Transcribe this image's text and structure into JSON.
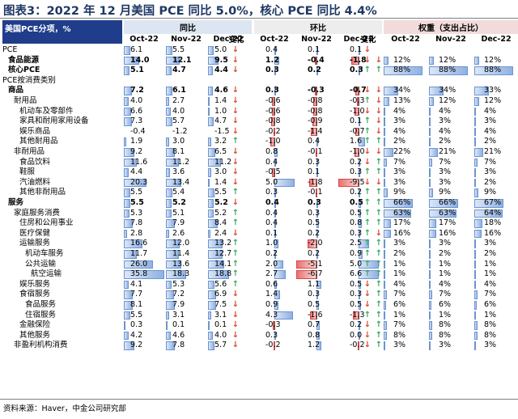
{
  "title": "图表3：2022 年 12 月美国 PCE 同比 5.0%，核心 PCE 同比 4.4%",
  "header": {
    "label_col": "美国PCE分项，%",
    "groups": [
      "同比",
      "环比",
      "权重（支出占比）"
    ],
    "months": [
      "Oct-22",
      "Nov-22",
      "Dec-22"
    ],
    "change": "变化"
  },
  "colors": {
    "header_blue": "#1f3d8a",
    "yoy_bg": "#dce6f2",
    "mom_bg": "#ededed",
    "wt_bg": "#f2dcdb",
    "up": "#37a862",
    "down": "#d9472b"
  },
  "rows": [
    {
      "label": "PCE",
      "indent": 0,
      "bold": false,
      "yoy": [
        6.1,
        5.5,
        5.0
      ],
      "yoy_s": [
        "6.1",
        "5.5",
        "5.0"
      ],
      "yoy_chg": "down",
      "mom": [
        0.4,
        0.1,
        0.1
      ],
      "mom_s": [
        "0.4",
        "0.1",
        "0.1"
      ],
      "mom_chg": "down",
      "wt": [
        "",
        "",
        ""
      ],
      "wtv": [
        0,
        0,
        0
      ],
      "wt_chg": ""
    },
    {
      "label": "食品能源",
      "indent": 1,
      "bold": true,
      "yoy": [
        14.0,
        12.1,
        9.5
      ],
      "yoy_s": [
        "14.0",
        "12.1",
        "9.5"
      ],
      "yoy_chg": "down",
      "mom": [
        1.2,
        -0.4,
        -1.8
      ],
      "mom_s": [
        "1.2",
        "-0.4",
        "-1.8"
      ],
      "mom_chg": "down",
      "wt": [
        "12%",
        "12%",
        "12%"
      ],
      "wtv": [
        12,
        12,
        12
      ],
      "wt_chg": "down"
    },
    {
      "label": "核心PCE",
      "indent": 1,
      "bold": true,
      "yoy": [
        5.1,
        4.7,
        4.4
      ],
      "yoy_s": [
        "5.1",
        "4.7",
        "4.4"
      ],
      "yoy_chg": "down",
      "mom": [
        0.3,
        0.2,
        0.3
      ],
      "mom_s": [
        "0.3",
        "0.2",
        "0.3"
      ],
      "mom_chg": "up",
      "wt": [
        "88%",
        "88%",
        "88%"
      ],
      "wtv": [
        88,
        88,
        88
      ],
      "wt_chg": "up"
    },
    {
      "label": "PCE按消费类别",
      "indent": 0,
      "bold": false,
      "yoy": null,
      "mom": null,
      "wt": null
    },
    {
      "label": "商品",
      "indent": 1,
      "bold": true,
      "yoy": [
        7.2,
        6.1,
        4.6
      ],
      "yoy_s": [
        "7.2",
        "6.1",
        "4.6"
      ],
      "yoy_chg": "down",
      "mom": [
        0.3,
        -0.3,
        -0.7
      ],
      "mom_s": [
        "0.3",
        "-0.3",
        "-0.7"
      ],
      "mom_chg": "down",
      "wt": [
        "34%",
        "34%",
        "33%"
      ],
      "wtv": [
        34,
        34,
        33
      ],
      "wt_chg": "down"
    },
    {
      "label": "耐用品",
      "indent": 2,
      "bold": false,
      "yoy": [
        4.0,
        2.7,
        1.4
      ],
      "yoy_s": [
        "4.0",
        "2.7",
        "1.4"
      ],
      "yoy_chg": "down",
      "mom": [
        -0.6,
        -0.8,
        -0.3
      ],
      "mom_s": [
        "-0.6",
        "-0.8",
        "-0.3"
      ],
      "mom_chg": "up",
      "wt": [
        "13%",
        "12%",
        "12%"
      ],
      "wtv": [
        13,
        12,
        12
      ],
      "wt_chg": "down"
    },
    {
      "label": "机动车及零部件",
      "indent": 3,
      "bold": false,
      "yoy": [
        6.6,
        4.0,
        1.0
      ],
      "yoy_s": [
        "6.6",
        "4.0",
        "1.0"
      ],
      "yoy_chg": "down",
      "mom": [
        -0.6,
        -0.8,
        -1.0
      ],
      "mom_s": [
        "-0.6",
        "-0.8",
        "-1.0"
      ],
      "mom_chg": "down",
      "wt": [
        "4%",
        "4%",
        "4%"
      ],
      "wtv": [
        4,
        4,
        4
      ],
      "wt_chg": "down"
    },
    {
      "label": "家具和耐用家用设备",
      "indent": 3,
      "bold": false,
      "yoy": [
        7.3,
        5.7,
        4.7
      ],
      "yoy_s": [
        "7.3",
        "5.7",
        "4.7"
      ],
      "yoy_chg": "down",
      "mom": [
        -0.8,
        -0.9,
        0.1
      ],
      "mom_s": [
        "-0.8",
        "-0.9",
        "0.1"
      ],
      "mom_chg": "up",
      "wt": [
        "3%",
        "3%",
        "3%"
      ],
      "wtv": [
        3,
        3,
        3
      ],
      "wt_chg": "down"
    },
    {
      "label": "娱乐商品",
      "indent": 3,
      "bold": false,
      "yoy": [
        -0.4,
        -1.2,
        -1.5
      ],
      "yoy_s": [
        "-0.4",
        "-1.2",
        "-1.5"
      ],
      "yoy_chg": "down",
      "mom": [
        -0.2,
        -1.4,
        -0.7
      ],
      "mom_s": [
        "-0.2",
        "-1.4",
        "-0.7"
      ],
      "mom_chg": "up",
      "wt": [
        "4%",
        "4%",
        "4%"
      ],
      "wtv": [
        4,
        4,
        4
      ],
      "wt_chg": "down"
    },
    {
      "label": "其他耐用品",
      "indent": 3,
      "bold": false,
      "yoy": [
        1.9,
        3.0,
        3.2
      ],
      "yoy_s": [
        "1.9",
        "3.0",
        "3.2"
      ],
      "yoy_chg": "up",
      "mom": [
        -1.0,
        0.4,
        1.6
      ],
      "mom_s": [
        "-1.0",
        "0.4",
        "1.6"
      ],
      "mom_chg": "up",
      "wt": [
        "2%",
        "2%",
        "2%"
      ],
      "wtv": [
        2,
        2,
        2
      ],
      "wt_chg": "up"
    },
    {
      "label": "非耐用品",
      "indent": 2,
      "bold": false,
      "yoy": [
        9.2,
        8.1,
        6.5
      ],
      "yoy_s": [
        "9.2",
        "8.1",
        "6.5"
      ],
      "yoy_chg": "down",
      "mom": [
        0.8,
        -0.1,
        -1.0
      ],
      "mom_s": [
        "0.8",
        "-0.1",
        "-1.0"
      ],
      "mom_chg": "down",
      "wt": [
        "22%",
        "21%",
        "21%"
      ],
      "wtv": [
        22,
        21,
        21
      ],
      "wt_chg": "down"
    },
    {
      "label": "食品饮料",
      "indent": 3,
      "bold": false,
      "yoy": [
        11.6,
        11.2,
        11.2
      ],
      "yoy_s": [
        "11.6",
        "11.2",
        "11.2"
      ],
      "yoy_chg": "down",
      "mom": [
        0.4,
        0.3,
        0.2
      ],
      "mom_s": [
        "0.4",
        "0.3",
        "0.2"
      ],
      "mom_chg": "down",
      "wt": [
        "7%",
        "7%",
        "7%"
      ],
      "wtv": [
        7,
        7,
        7
      ],
      "wt_chg": "up"
    },
    {
      "label": "鞋服",
      "indent": 3,
      "bold": false,
      "yoy": [
        4.4,
        3.6,
        3.0
      ],
      "yoy_s": [
        "4.4",
        "3.6",
        "3.0"
      ],
      "yoy_chg": "down",
      "mom": [
        -0.5,
        0.1,
        0.3
      ],
      "mom_s": [
        "-0.5",
        "0.1",
        "0.3"
      ],
      "mom_chg": "up",
      "wt": [
        "3%",
        "3%",
        "3%"
      ],
      "wtv": [
        3,
        3,
        3
      ],
      "wt_chg": "up"
    },
    {
      "label": "汽油燃料",
      "indent": 3,
      "bold": false,
      "yoy": [
        20.3,
        13.4,
        1.4
      ],
      "yoy_s": [
        "20.3",
        "13.4",
        "1.4"
      ],
      "yoy_chg": "down",
      "mom": [
        5.0,
        -1.8,
        -9.5
      ],
      "mom_s": [
        "5.0",
        "-1.8",
        "-9.5"
      ],
      "mom_chg": "down",
      "wt": [
        "3%",
        "3%",
        "2%"
      ],
      "wtv": [
        3,
        3,
        2
      ],
      "wt_chg": "down"
    },
    {
      "label": "其他非耐用品",
      "indent": 3,
      "bold": false,
      "yoy": [
        5.5,
        5.4,
        5.5
      ],
      "yoy_s": [
        "5.5",
        "5.4",
        "5.5"
      ],
      "yoy_chg": "up",
      "mom": [
        0.3,
        -0.1,
        0.2
      ],
      "mom_s": [
        "0.3",
        "-0.1",
        "0.2"
      ],
      "mom_chg": "up",
      "wt": [
        "9%",
        "9%",
        "9%"
      ],
      "wtv": [
        9,
        9,
        9
      ],
      "wt_chg": "up"
    },
    {
      "label": "服务",
      "indent": 1,
      "bold": true,
      "yoy": [
        5.5,
        5.2,
        5.2
      ],
      "yoy_s": [
        "5.5",
        "5.2",
        "5.2"
      ],
      "yoy_chg": "down",
      "mom": [
        0.4,
        0.3,
        0.5
      ],
      "mom_s": [
        "0.4",
        "0.3",
        "0.5"
      ],
      "mom_chg": "up",
      "wt": [
        "66%",
        "66%",
        "67%"
      ],
      "wtv": [
        66,
        66,
        67
      ],
      "wt_chg": "up"
    },
    {
      "label": "家庭服务消费",
      "indent": 2,
      "bold": false,
      "yoy": [
        5.3,
        5.1,
        5.2
      ],
      "yoy_s": [
        "5.3",
        "5.1",
        "5.2"
      ],
      "yoy_chg": "up",
      "mom": [
        0.4,
        0.3,
        0.5
      ],
      "mom_s": [
        "0.4",
        "0.3",
        "0.5"
      ],
      "mom_chg": "up",
      "wt": [
        "63%",
        "63%",
        "64%"
      ],
      "wtv": [
        63,
        63,
        64
      ],
      "wt_chg": "up"
    },
    {
      "label": "住房和公用事业",
      "indent": 3,
      "bold": false,
      "yoy": [
        7.8,
        7.9,
        8.4
      ],
      "yoy_s": [
        "7.8",
        "7.9",
        "8.4"
      ],
      "yoy_chg": "up",
      "mom": [
        0.4,
        0.5,
        0.8
      ],
      "mom_s": [
        "0.4",
        "0.5",
        "0.8"
      ],
      "mom_chg": "up",
      "wt": [
        "17%",
        "17%",
        "18%"
      ],
      "wtv": [
        17,
        17,
        18
      ],
      "wt_chg": "up"
    },
    {
      "label": "医疗保健",
      "indent": 3,
      "bold": false,
      "yoy": [
        2.8,
        2.6,
        2.4
      ],
      "yoy_s": [
        "2.8",
        "2.6",
        "2.4"
      ],
      "yoy_chg": "down",
      "mom": [
        0.1,
        0.2,
        0.3
      ],
      "mom_s": [
        "0.1",
        "0.2",
        "0.3"
      ],
      "mom_chg": "up",
      "wt": [
        "16%",
        "16%",
        "16%"
      ],
      "wtv": [
        16,
        16,
        16
      ],
      "wt_chg": "down"
    },
    {
      "label": "运输服务",
      "indent": 3,
      "bold": false,
      "yoy": [
        16.6,
        12.0,
        13.2
      ],
      "yoy_s": [
        "16.6",
        "12.0",
        "13.2"
      ],
      "yoy_chg": "up",
      "mom": [
        1.0,
        -2.0,
        2.5
      ],
      "mom_s": [
        "1.0",
        "-2.0",
        "2.5"
      ],
      "mom_chg": "up",
      "wt": [
        "3%",
        "3%",
        "3%"
      ],
      "wtv": [
        3,
        3,
        3
      ],
      "wt_chg": "up"
    },
    {
      "label": "机动车服务",
      "indent": 4,
      "bold": false,
      "yoy": [
        11.7,
        11.4,
        12.7
      ],
      "yoy_s": [
        "11.7",
        "11.4",
        "12.7"
      ],
      "yoy_chg": "up",
      "mom": [
        0.2,
        0.2,
        0.9
      ],
      "mom_s": [
        "0.2",
        "0.2",
        "0.9"
      ],
      "mom_chg": "up",
      "wt": [
        "2%",
        "2%",
        "2%"
      ],
      "wtv": [
        2,
        2,
        2
      ],
      "wt_chg": "up"
    },
    {
      "label": "公共运输",
      "indent": 4,
      "bold": false,
      "yoy": [
        26.0,
        13.6,
        14.1
      ],
      "yoy_s": [
        "26.0",
        "13.6",
        "14.1"
      ],
      "yoy_chg": "up",
      "mom": [
        2.0,
        -5.1,
        5.0
      ],
      "mom_s": [
        "2.0",
        "-5.1",
        "5.0"
      ],
      "mom_chg": "up",
      "wt": [
        "1%",
        "1%",
        "1%"
      ],
      "wtv": [
        1,
        1,
        1
      ],
      "wt_chg": "up"
    },
    {
      "label": "航空运输",
      "indent": 5,
      "bold": false,
      "yoy": [
        35.8,
        18.3,
        18.8
      ],
      "yoy_s": [
        "35.8",
        "18.3",
        "18.8"
      ],
      "yoy_chg": "up",
      "mom": [
        2.7,
        -6.7,
        6.6
      ],
      "mom_s": [
        "2.7",
        "-6.7",
        "6.6"
      ],
      "mom_chg": "up",
      "wt": [
        "1%",
        "1%",
        "1%"
      ],
      "wtv": [
        1,
        1,
        1
      ],
      "wt_chg": "up"
    },
    {
      "label": "娱乐服务",
      "indent": 3,
      "bold": false,
      "yoy": [
        4.1,
        5.3,
        5.6
      ],
      "yoy_s": [
        "4.1",
        "5.3",
        "5.6"
      ],
      "yoy_chg": "up",
      "mom": [
        0.6,
        1.1,
        0.5
      ],
      "mom_s": [
        "0.6",
        "1.1",
        "0.5"
      ],
      "mom_chg": "down",
      "wt": [
        "4%",
        "4%",
        "4%"
      ],
      "wtv": [
        4,
        4,
        4
      ],
      "wt_chg": "up"
    },
    {
      "label": "食宿服务",
      "indent": 3,
      "bold": false,
      "yoy": [
        7.7,
        7.2,
        6.9
      ],
      "yoy_s": [
        "7.7",
        "7.2",
        "6.9"
      ],
      "yoy_chg": "down",
      "mom": [
        1.4,
        0.3,
        0.3
      ],
      "mom_s": [
        "1.4",
        "0.3",
        "0.3"
      ],
      "mom_chg": "down",
      "wt": [
        "7%",
        "7%",
        "7%"
      ],
      "wtv": [
        7,
        7,
        7
      ],
      "wt_chg": "up"
    },
    {
      "label": "食品服务",
      "indent": 4,
      "bold": false,
      "yoy": [
        8.1,
        7.9,
        7.5
      ],
      "yoy_s": [
        "8.1",
        "7.9",
        "7.5"
      ],
      "yoy_chg": "down",
      "mom": [
        0.9,
        0.5,
        0.5
      ],
      "mom_s": [
        "0.9",
        "0.5",
        "0.5"
      ],
      "mom_chg": "down",
      "wt": [
        "6%",
        "6%",
        "6%"
      ],
      "wtv": [
        6,
        6,
        6
      ],
      "wt_chg": "up"
    },
    {
      "label": "住宿服务",
      "indent": 4,
      "bold": false,
      "yoy": [
        5.5,
        3.1,
        3.1
      ],
      "yoy_s": [
        "5.5",
        "3.1",
        "3.1"
      ],
      "yoy_chg": "down",
      "mom": [
        4.3,
        -1.6,
        -1.3
      ],
      "mom_s": [
        "4.3",
        "-1.6",
        "-1.3"
      ],
      "mom_chg": "up",
      "wt": [
        "1%",
        "1%",
        "1%"
      ],
      "wtv": [
        1,
        1,
        1
      ],
      "wt_chg": "up"
    },
    {
      "label": "金融保险",
      "indent": 3,
      "bold": false,
      "yoy": [
        0.3,
        0.1,
        0.1
      ],
      "yoy_s": [
        "0.3",
        "0.1",
        "0.1"
      ],
      "yoy_chg": "down",
      "mom": [
        -0.3,
        0.7,
        0.2
      ],
      "mom_s": [
        "-0.3",
        "0.7",
        "0.2"
      ],
      "mom_chg": "down",
      "wt": [
        "7%",
        "8%",
        "8%"
      ],
      "wtv": [
        7,
        8,
        8
      ],
      "wt_chg": "up"
    },
    {
      "label": "其他服务",
      "indent": 3,
      "bold": false,
      "yoy": [
        4.2,
        4.6,
        4.0
      ],
      "yoy_s": [
        "4.2",
        "4.6",
        "4.0"
      ],
      "yoy_chg": "down",
      "mom": [
        0.3,
        0.8,
        0.0
      ],
      "mom_s": [
        "0.3",
        "0.8",
        "0.0"
      ],
      "mom_chg": "down",
      "wt": [
        "8%",
        "8%",
        "8%"
      ],
      "wtv": [
        8,
        8,
        8
      ],
      "wt_chg": "up"
    },
    {
      "label": "非盈利机构消费",
      "indent": 2,
      "bold": false,
      "yoy": [
        9.2,
        7.8,
        5.7
      ],
      "yoy_s": [
        "9.2",
        "7.8",
        "5.7"
      ],
      "yoy_chg": "down",
      "mom": [
        -0.2,
        1.2,
        -0.2
      ],
      "mom_s": [
        "-0.2",
        "1.2",
        "-0.2"
      ],
      "mom_chg": "down",
      "wt": [
        "3%",
        "3%",
        "3%"
      ],
      "wtv": [
        3,
        3,
        3
      ],
      "wt_chg": "up"
    }
  ],
  "source": "资料来源：Haver，中金公司研究部"
}
